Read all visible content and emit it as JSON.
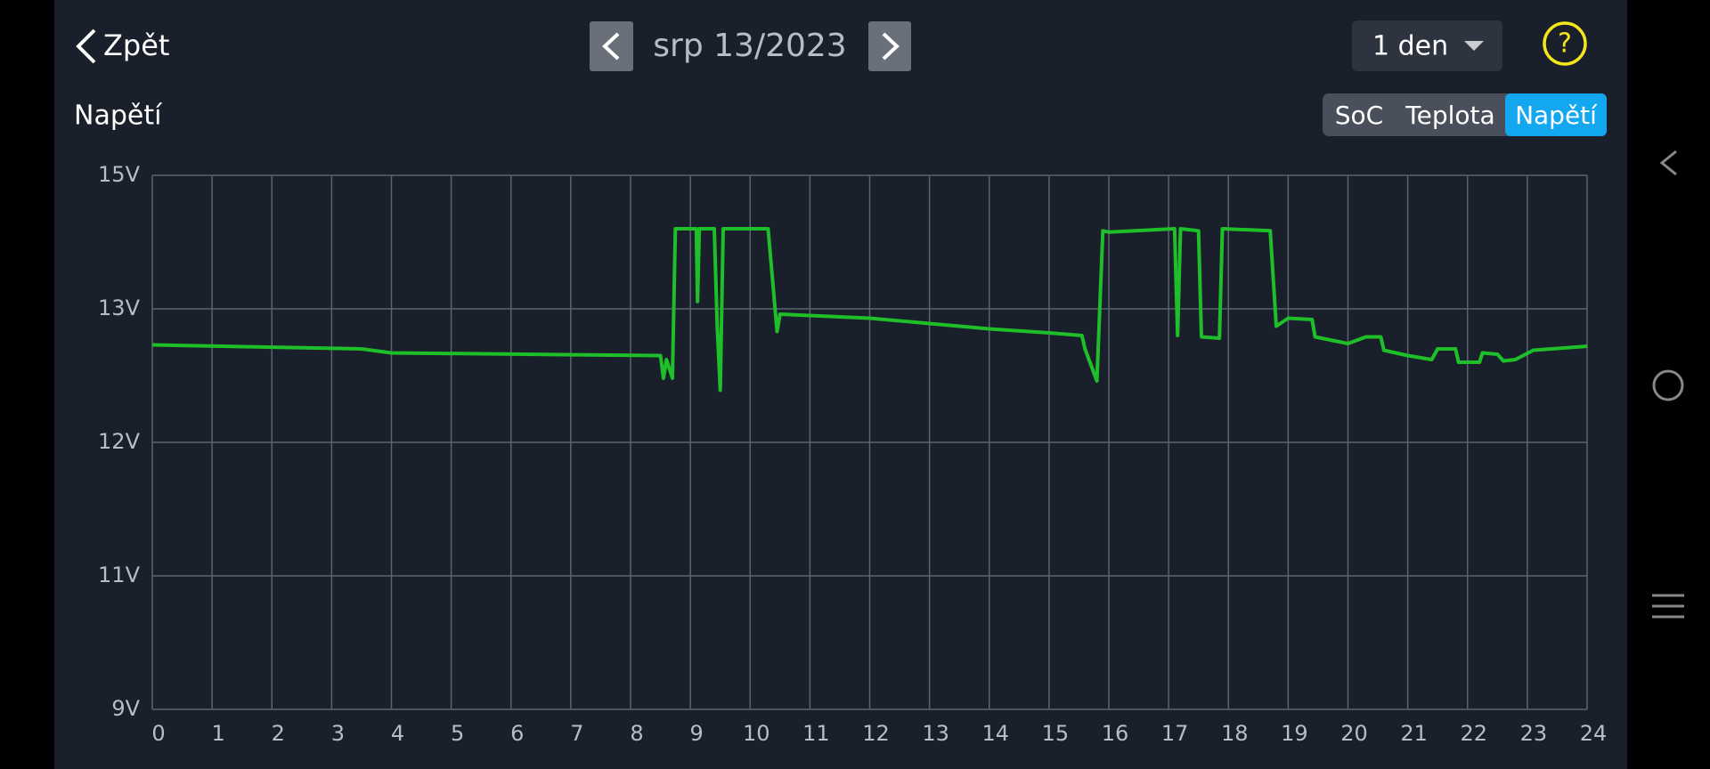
{
  "header": {
    "back": "Zpět",
    "date": "srp 13/2023",
    "range": "1 den",
    "help": "?"
  },
  "tabs": [
    "SoC",
    "Teplota",
    "Napětí"
  ],
  "active_tab": 2,
  "chart_data": {
    "type": "line",
    "title": "Napětí",
    "color": "#1fbf2a",
    "grid": true,
    "x": [
      0,
      3.5,
      4,
      8.5,
      8.55,
      8.6,
      8.7,
      8.75,
      9.1,
      9.12,
      9.15,
      9.4,
      9.45,
      9.5,
      9.55,
      10.3,
      10.45,
      10.5,
      11,
      12,
      13,
      14,
      15,
      15.55,
      15.6,
      15.8,
      15.9,
      16,
      17.1,
      17.15,
      17.2,
      17.5,
      17.55,
      17.85,
      17.9,
      18.7,
      18.8,
      19,
      19.4,
      19.45,
      20,
      20.3,
      20.55,
      20.6,
      21,
      21.4,
      21.5,
      21.8,
      21.85,
      22.2,
      22.25,
      22.5,
      22.6,
      22.8,
      23.1,
      24
    ],
    "values": [
      12.73,
      12.7,
      12.67,
      12.65,
      12.48,
      12.62,
      12.48,
      14.2,
      14.2,
      13.11,
      14.2,
      14.2,
      12.87,
      12.39,
      14.2,
      14.2,
      12.83,
      12.96,
      12.95,
      12.93,
      12.89,
      12.85,
      12.82,
      12.8,
      12.7,
      12.46,
      14.17,
      14.15,
      14.2,
      12.8,
      14.2,
      14.17,
      12.79,
      12.78,
      14.2,
      14.17,
      12.87,
      12.93,
      12.92,
      12.79,
      12.74,
      12.79,
      12.79,
      12.69,
      12.65,
      12.62,
      12.7,
      12.7,
      12.6,
      12.6,
      12.67,
      12.66,
      12.61,
      12.62,
      12.69,
      12.72
    ],
    "xlim": [
      0,
      24
    ],
    "xticks": [
      0,
      1,
      2,
      3,
      4,
      5,
      6,
      7,
      8,
      9,
      10,
      11,
      12,
      13,
      14,
      15,
      16,
      17,
      18,
      19,
      20,
      21,
      22,
      23,
      24
    ],
    "ylim": [
      9,
      15
    ],
    "yticks": [
      {
        "value": 15,
        "label": "15V"
      },
      {
        "value": 13,
        "label": "13V"
      },
      {
        "value": 12,
        "label": "12V"
      },
      {
        "value": 11,
        "label": "11V"
      },
      {
        "value": 9,
        "label": "9V"
      }
    ]
  }
}
